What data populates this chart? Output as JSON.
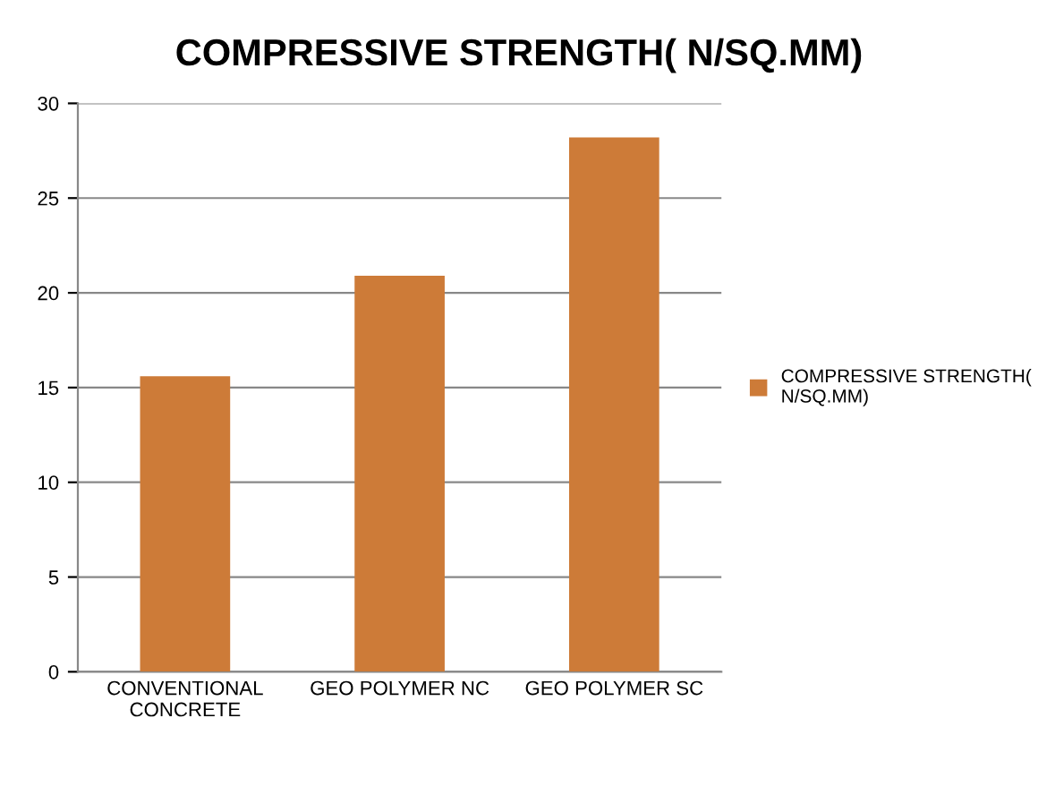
{
  "chart_data": {
    "type": "bar",
    "title": "COMPRESSIVE STRENGTH( N/SQ.MM)",
    "categories": [
      "CONVENTIONAL CONCRETE",
      "GEO POLYMER NC",
      "GEO POLYMER SC"
    ],
    "series": [
      {
        "name": "COMPRESSIVE STRENGTH( N/SQ.MM)",
        "color": "#cd7b38",
        "values": [
          15.6,
          20.9,
          28.2
        ]
      }
    ],
    "ylim": [
      0,
      30
    ],
    "yticks": [
      0,
      5,
      10,
      15,
      20,
      25,
      30
    ],
    "grid": "y",
    "legend": "right"
  }
}
